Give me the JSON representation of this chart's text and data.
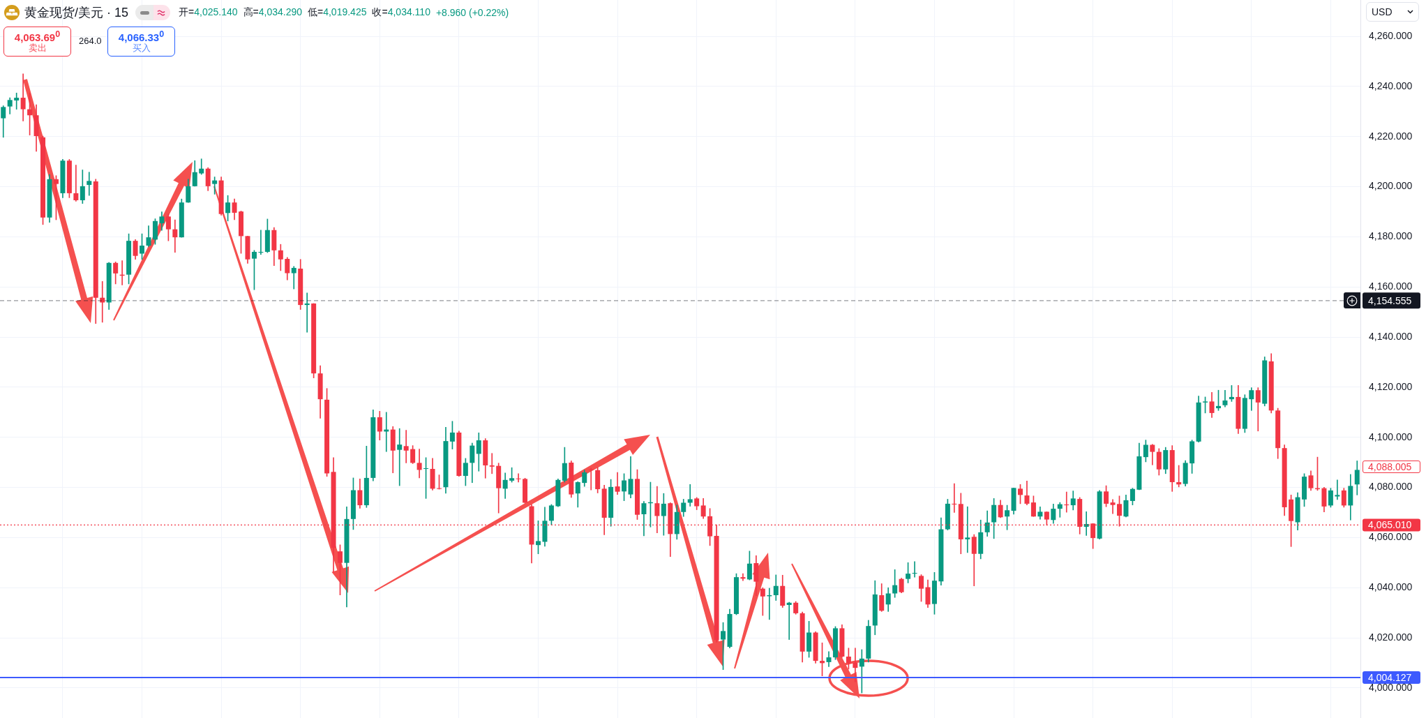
{
  "chart_data": {
    "type": "candlestick",
    "title": "黄金现货/美元 · 15",
    "ylabel": "USD",
    "categories": [
      null,
      null,
      null,
      null,
      null,
      null,
      null,
      null,
      null,
      null,
      null,
      null,
      null,
      null,
      null,
      null,
      null,
      null,
      null,
      null,
      null,
      null,
      null,
      null,
      null,
      null,
      null,
      null,
      null,
      null,
      null,
      null,
      null,
      null,
      null,
      null,
      null,
      null,
      null,
      null,
      null,
      null,
      null,
      null,
      null,
      null,
      null,
      null,
      null,
      null,
      null,
      null,
      null,
      null,
      null,
      null,
      null,
      null,
      null,
      null,
      null,
      null,
      null,
      null,
      null,
      null,
      null,
      null,
      null,
      null,
      null,
      null,
      null,
      null,
      null,
      null,
      null,
      null,
      null,
      null,
      null,
      null,
      null,
      null,
      null,
      null,
      null,
      null,
      null,
      null,
      null,
      null,
      null,
      null,
      null,
      null,
      null,
      null,
      null,
      null,
      null,
      null,
      null,
      null,
      null,
      null,
      null,
      null,
      null,
      null,
      null,
      null,
      null,
      null,
      null,
      null,
      null,
      null,
      null,
      null,
      null,
      null,
      null,
      null,
      null,
      null,
      null,
      null,
      null,
      null,
      null,
      null,
      null,
      null,
      null,
      null,
      null,
      null,
      null,
      null,
      null,
      null,
      null,
      null,
      null,
      null,
      null,
      null,
      null,
      null,
      null,
      null,
      null,
      null,
      null,
      null,
      null,
      null,
      null,
      null,
      null,
      null,
      null,
      null,
      null,
      null,
      null,
      null,
      null,
      null,
      null,
      null,
      null,
      null,
      null,
      null,
      null,
      null,
      null,
      null,
      null,
      null,
      null,
      null,
      null,
      null,
      null,
      null,
      null,
      null,
      null,
      null,
      null,
      null,
      null,
      null,
      null,
      null,
      null,
      null,
      null,
      null,
      null,
      null,
      null,
      null
    ],
    "ohlc": [
      [
        4227.3,
        4232.3,
        4219.7,
        4231.8
      ],
      [
        4232.0,
        4235.5,
        4229.0,
        4234.6
      ],
      [
        4234.4,
        4237.4,
        4230.9,
        4235.5
      ],
      [
        4235.5,
        4245.0,
        4226.2,
        4230.9
      ],
      [
        4230.9,
        4237.4,
        4220.6,
        4228.5
      ],
      [
        4228.5,
        4232.7,
        4214.1,
        4220.2
      ],
      [
        4219.7,
        4220.2,
        4184.9,
        4187.7
      ],
      [
        4187.7,
        4204.9,
        4185.8,
        4203.0
      ],
      [
        4203.0,
        4204.4,
        4186.8,
        4201.1
      ],
      [
        4197.4,
        4210.9,
        4195.6,
        4210.4
      ],
      [
        4210.4,
        4210.9,
        4195.6,
        4197.4
      ],
      [
        4197.4,
        4208.6,
        4194.2,
        4194.6
      ],
      [
        4194.6,
        4206.7,
        4193.3,
        4200.2
      ],
      [
        4200.7,
        4205.8,
        4196.5,
        4202.3
      ],
      [
        4202.1,
        4203.0,
        4145.4,
        4155.7
      ],
      [
        4155.7,
        4162.2,
        4145.9,
        4153.8
      ],
      [
        4153.8,
        4169.8,
        4151.0,
        4169.6
      ],
      [
        4169.6,
        4170.0,
        4161.2,
        4165.4
      ],
      [
        4164.9,
        4170.5,
        4160.8,
        4164.5
      ],
      [
        4164.9,
        4181.2,
        4161.2,
        4178.4
      ],
      [
        4178.4,
        4178.9,
        4171.0,
        4172.4
      ],
      [
        4173.3,
        4181.2,
        4171.0,
        4176.5
      ],
      [
        4176.5,
        4184.4,
        4176.1,
        4179.8
      ],
      [
        4178.9,
        4187.2,
        4177.0,
        4186.3
      ],
      [
        4185.4,
        4190.0,
        4182.6,
        4188.1
      ],
      [
        4188.1,
        4189.1,
        4178.4,
        4183.0
      ],
      [
        4183.0,
        4186.8,
        4173.8,
        4179.8
      ],
      [
        4179.8,
        4195.1,
        4179.8,
        4193.7
      ],
      [
        4193.7,
        4203.0,
        4193.7,
        4200.2
      ],
      [
        4200.2,
        4210.4,
        4200.2,
        4205.8
      ],
      [
        4205.3,
        4211.1,
        4204.9,
        4207.2
      ],
      [
        4207.2,
        4207.6,
        4198.4,
        4200.2
      ],
      [
        4201.1,
        4203.9,
        4197.0,
        4202.5
      ],
      [
        4202.5,
        4203.9,
        4188.6,
        4189.1
      ],
      [
        4189.5,
        4196.5,
        4186.3,
        4193.7
      ],
      [
        4193.7,
        4195.1,
        4186.8,
        4189.6
      ],
      [
        4190.1,
        4190.3,
        4173.4,
        4180.3
      ],
      [
        4180.3,
        4180.3,
        4169.4,
        4171.0
      ],
      [
        4171.3,
        4174.6,
        4158.9,
        4174.0
      ],
      [
        4173.7,
        4182.7,
        4173.0,
        4174.0
      ],
      [
        4174.0,
        4187.1,
        4173.7,
        4182.7
      ],
      [
        4182.7,
        4183.7,
        4168.5,
        4174.6
      ],
      [
        4174.6,
        4177.0,
        4166.5,
        4171.0
      ],
      [
        4171.2,
        4171.8,
        4162.8,
        4165.5
      ],
      [
        4165.5,
        4168.2,
        4159.2,
        4167.6
      ],
      [
        4167.3,
        4171.0,
        4151.0,
        4152.8
      ],
      [
        4152.8,
        4157.6,
        4141.9,
        4153.4
      ],
      [
        4153.4,
        4153.4,
        4123.7,
        4125.5
      ],
      [
        4125.5,
        4128.6,
        4107.6,
        4115.2
      ],
      [
        4115.0,
        4119.5,
        4084.4,
        4085.6
      ],
      [
        4086.2,
        4091.9,
        4046.2,
        4055.9
      ],
      [
        4054.5,
        4057.1,
        4037.1,
        4049.9
      ],
      [
        4049.9,
        4072.3,
        4032.3,
        4067.4
      ],
      [
        4067.4,
        4083.8,
        4063.2,
        4078.9
      ],
      [
        4078.9,
        4083.4,
        4071.7,
        4072.9
      ],
      [
        4072.9,
        4096.5,
        4072.0,
        4083.8
      ],
      [
        4083.8,
        4111.0,
        4082.6,
        4108.0
      ],
      [
        4108.0,
        4110.4,
        4098.9,
        4102.3
      ],
      [
        4102.3,
        4110.0,
        4094.3,
        4103.1
      ],
      [
        4103.1,
        4104.3,
        4085.8,
        4094.7
      ],
      [
        4095.0,
        4103.5,
        4080.7,
        4097.1
      ],
      [
        4096.5,
        4102.8,
        4089.8,
        4094.7
      ],
      [
        4095.3,
        4096.7,
        4089.5,
        4089.8
      ],
      [
        4089.8,
        4095.3,
        4083.8,
        4087.0
      ],
      [
        4087.4,
        4091.9,
        4075.6,
        4087.6
      ],
      [
        4087.4,
        4091.6,
        4078.9,
        4079.5
      ],
      [
        4079.5,
        4085.0,
        4079.3,
        4079.4
      ],
      [
        4080.1,
        4104.0,
        4077.7,
        4098.5
      ],
      [
        4098.3,
        4106.4,
        4095.3,
        4101.9
      ],
      [
        4101.9,
        4102.5,
        4084.4,
        4084.6
      ],
      [
        4084.6,
        4091.6,
        4080.7,
        4089.8
      ],
      [
        4089.8,
        4097.7,
        4081.9,
        4096.7
      ],
      [
        4093.4,
        4101.8,
        4086.5,
        4098.8
      ],
      [
        4098.8,
        4099.5,
        4083.7,
        4088.8
      ],
      [
        4088.8,
        4093.6,
        4085.5,
        4088.3
      ],
      [
        4088.6,
        4089.7,
        4069.8,
        4079.7
      ],
      [
        4079.5,
        4085.8,
        4075.6,
        4083.0
      ],
      [
        4082.7,
        4087.9,
        4082.1,
        4083.7
      ],
      [
        4083.5,
        4085.5,
        4082.1,
        4083.3
      ],
      [
        4083.4,
        4083.7,
        4073.7,
        4073.9
      ],
      [
        4072.5,
        4073.2,
        4049.8,
        4057.2
      ],
      [
        4057.0,
        4066.7,
        4053.5,
        4058.6
      ],
      [
        4058.3,
        4072.1,
        4056.5,
        4066.7
      ],
      [
        4066.7,
        4073.2,
        4065.1,
        4072.8
      ],
      [
        4072.5,
        4083.4,
        4072.3,
        4083.0
      ],
      [
        4082.7,
        4096.0,
        4082.1,
        4089.7
      ],
      [
        4089.9,
        4090.6,
        4076.0,
        4077.2
      ],
      [
        4077.6,
        4082.3,
        4072.1,
        4082.1
      ],
      [
        4081.8,
        4086.9,
        4080.4,
        4086.0
      ],
      [
        4087.1,
        4087.7,
        4079.0,
        4086.9
      ],
      [
        4086.9,
        4087.9,
        4077.8,
        4079.3
      ],
      [
        4079.5,
        4080.9,
        4061.1,
        4067.9
      ],
      [
        4067.9,
        4083.2,
        4064.5,
        4080.2
      ],
      [
        4080.4,
        4086.0,
        4077.2,
        4078.3
      ],
      [
        4078.4,
        4085.5,
        4074.7,
        4082.8
      ],
      [
        4077.2,
        4092.3,
        4075.8,
        4083.4
      ],
      [
        4083.4,
        4087.1,
        4067.2,
        4069.1
      ],
      [
        4069.3,
        4074.4,
        4060.7,
        4073.7
      ],
      [
        4073.7,
        4082.1,
        4064.2,
        4074.1
      ],
      [
        4073.7,
        4080.4,
        4061.9,
        4068.6
      ],
      [
        4068.6,
        4077.6,
        4060.9,
        4073.5
      ],
      [
        4073.7,
        4073.9,
        4052.4,
        4061.4
      ],
      [
        4061.4,
        4073.0,
        4059.3,
        4070.2
      ],
      [
        4070.2,
        4075.3,
        4068.4,
        4073.9
      ],
      [
        4073.9,
        4081.2,
        4072.5,
        4075.3
      ],
      [
        4075.6,
        4076.0,
        4071.1,
        4072.5
      ],
      [
        4072.8,
        4075.6,
        4067.6,
        4068.4
      ],
      [
        4068.5,
        4071.6,
        4056.8,
        4060.5
      ],
      [
        4060.7,
        4065.1,
        4018.2,
        4019.1
      ],
      [
        4019.3,
        4026.1,
        4007.3,
        4022.7
      ],
      [
        4016.4,
        4031.4,
        4015.9,
        4029.5
      ],
      [
        4029.5,
        4045.6,
        4029.2,
        4044.2
      ],
      [
        4044.2,
        4045.6,
        4042.8,
        4043.6
      ],
      [
        4043.3,
        4054.6,
        4043.1,
        4049.6
      ],
      [
        4049.8,
        4052.8,
        4036.8,
        4042.4
      ],
      [
        4039.6,
        4040.0,
        4028.9,
        4036.5
      ],
      [
        4036.6,
        4039.8,
        4027.3,
        4037.0
      ],
      [
        4037.0,
        4045.1,
        4034.9,
        4040.7
      ],
      [
        4040.7,
        4045.0,
        4032.1,
        4032.8
      ],
      [
        4033.1,
        4034.2,
        4019.3,
        4034.0
      ],
      [
        4034.0,
        4034.5,
        4029.4,
        4029.8
      ],
      [
        4029.8,
        4030.3,
        4010.3,
        4014.5
      ],
      [
        4014.5,
        4026.6,
        4012.2,
        4022.1
      ],
      [
        4022.1,
        4022.4,
        4009.9,
        4010.8
      ],
      [
        4010.8,
        4018.0,
        4004.8,
        4009.9
      ],
      [
        4010.3,
        4014.5,
        4008.5,
        4012.2
      ],
      [
        4012.2,
        4024.5,
        4011.3,
        4023.8
      ],
      [
        4023.8,
        4025.2,
        4012.2,
        4012.5
      ],
      [
        4012.5,
        4015.9,
        4007.5,
        4009.9
      ],
      [
        4010.1,
        4015.9,
        4002.4,
        4008.0
      ],
      [
        4008.5,
        4015.3,
        3998.0,
        4011.7
      ],
      [
        4011.7,
        4027.0,
        4010.3,
        4024.7
      ],
      [
        4024.9,
        4042.8,
        4021.2,
        4037.3
      ],
      [
        4037.0,
        4041.6,
        4030.5,
        4030.8
      ],
      [
        4033.3,
        4040.0,
        4030.5,
        4037.7
      ],
      [
        4037.7,
        4047.2,
        4036.1,
        4041.0
      ],
      [
        4043.5,
        4043.8,
        4037.9,
        4038.2
      ],
      [
        4043.5,
        4050.0,
        4041.9,
        4045.6
      ],
      [
        4045.6,
        4050.4,
        4044.2,
        4045.9
      ],
      [
        4044.7,
        4045.2,
        4034.5,
        4039.6
      ],
      [
        4040.2,
        4043.1,
        4032.1,
        4033.3
      ],
      [
        4033.5,
        4046.1,
        4029.4,
        4042.8
      ],
      [
        4042.5,
        4067.9,
        4041.0,
        4063.3
      ],
      [
        4063.3,
        4075.3,
        4063.0,
        4073.5
      ],
      [
        4073.5,
        4081.5,
        4070.0,
        4073.2
      ],
      [
        4073.4,
        4077.7,
        4053.5,
        4059.3
      ],
      [
        4059.3,
        4072.3,
        4054.0,
        4060.0
      ],
      [
        4060.3,
        4061.2,
        4040.7,
        4053.5
      ],
      [
        4053.5,
        4067.0,
        4051.5,
        4062.1
      ],
      [
        4062.1,
        4070.7,
        4060.5,
        4066.0
      ],
      [
        4066.1,
        4075.6,
        4059.6,
        4073.0
      ],
      [
        4073.0,
        4074.9,
        4067.9,
        4068.1
      ],
      [
        4068.4,
        4072.9,
        4063.1,
        4070.9
      ],
      [
        4070.7,
        4079.8,
        4069.3,
        4079.8
      ],
      [
        4079.5,
        4081.2,
        4073.5,
        4077.0
      ],
      [
        4076.8,
        4082.6,
        4073.0,
        4073.5
      ],
      [
        4074.0,
        4076.6,
        4068.4,
        4068.4
      ],
      [
        4068.4,
        4072.3,
        4067.3,
        4070.3
      ],
      [
        4070.3,
        4070.3,
        4064.9,
        4067.2
      ],
      [
        4067.0,
        4073.4,
        4065.6,
        4071.5
      ],
      [
        4071.5,
        4074.0,
        4068.1,
        4073.3
      ],
      [
        4073.2,
        4078.2,
        4070.1,
        4072.9
      ],
      [
        4072.9,
        4078.6,
        4071.0,
        4075.6
      ],
      [
        4075.4,
        4076.0,
        4061.4,
        4064.3
      ],
      [
        4064.3,
        4070.3,
        4060.8,
        4065.4
      ],
      [
        4065.6,
        4065.6,
        4055.6,
        4059.8
      ],
      [
        4059.6,
        4078.8,
        4059.4,
        4078.4
      ],
      [
        4078.4,
        4080.7,
        4072.3,
        4073.5
      ],
      [
        4074.0,
        4075.2,
        4069.5,
        4073.0
      ],
      [
        4073.4,
        4076.6,
        4064.5,
        4068.7
      ],
      [
        4068.4,
        4077.0,
        4068.2,
        4074.9
      ],
      [
        4074.6,
        4079.7,
        4073.0,
        4079.4
      ],
      [
        4079.1,
        4097.7,
        4079.1,
        4092.4
      ],
      [
        4092.1,
        4098.9,
        4090.2,
        4097.0
      ],
      [
        4097.0,
        4097.2,
        4089.0,
        4094.2
      ],
      [
        4094.2,
        4095.5,
        4084.9,
        4087.2
      ],
      [
        4087.2,
        4096.0,
        4085.5,
        4094.9
      ],
      [
        4094.9,
        4096.7,
        4078.4,
        4082.1
      ],
      [
        4082.1,
        4088.8,
        4080.2,
        4081.2
      ],
      [
        4081.4,
        4090.7,
        4080.5,
        4089.8
      ],
      [
        4089.6,
        4098.9,
        4085.6,
        4098.4
      ],
      [
        4098.3,
        4116.5,
        4098.1,
        4113.9
      ],
      [
        4113.9,
        4116.1,
        4109.7,
        4114.3
      ],
      [
        4114.3,
        4117.9,
        4107.9,
        4109.7
      ],
      [
        4111.6,
        4118.8,
        4110.7,
        4112.5
      ],
      [
        4112.8,
        4118.8,
        4112.1,
        4114.7
      ],
      [
        4115.2,
        4120.7,
        4114.3,
        4116.1
      ],
      [
        4116.1,
        4120.7,
        4101.5,
        4103.4
      ],
      [
        4103.4,
        4117.0,
        4101.9,
        4115.7
      ],
      [
        4115.2,
        4119.8,
        4110.7,
        4118.8
      ],
      [
        4118.8,
        4119.8,
        4102.5,
        4113.9
      ],
      [
        4113.4,
        4132.1,
        4112.5,
        4130.7
      ],
      [
        4130.3,
        4133.4,
        4109.7,
        4110.7
      ],
      [
        4110.7,
        4111.6,
        4091.5,
        4095.7
      ],
      [
        4095.7,
        4097.0,
        4068.8,
        4072.1
      ],
      [
        4075.2,
        4077.0,
        4056.4,
        4066.6
      ],
      [
        4066.1,
        4077.9,
        4063.0,
        4076.1
      ],
      [
        4075.2,
        4085.5,
        4072.4,
        4084.3
      ],
      [
        4084.8,
        4086.6,
        4078.8,
        4079.7
      ],
      [
        4079.7,
        4092.1,
        4078.8,
        4079.3
      ],
      [
        4079.7,
        4080.1,
        4070.2,
        4072.4
      ],
      [
        4072.8,
        4079.7,
        4072.1,
        4078.8
      ],
      [
        4076.4,
        4083.0,
        4075.2,
        4077.0
      ],
      [
        4078.8,
        4079.7,
        4072.1,
        4072.8
      ],
      [
        4072.8,
        4085.2,
        4067.0,
        4080.6
      ],
      [
        4081.2,
        4090.6,
        4077.0,
        4087.0
      ]
    ],
    "ylim": [
      3988,
      4274.5
    ],
    "yticks": [
      {
        "value": 4000,
        "label": "4,000.000"
      },
      {
        "value": 4020,
        "label": "4,020.000"
      },
      {
        "value": 4040,
        "label": "4,040.000"
      },
      {
        "value": 4060,
        "label": "4,060.000"
      },
      {
        "value": 4080,
        "label": "4,080.000"
      },
      {
        "value": 4100,
        "label": "4,100.000"
      },
      {
        "value": 4120,
        "label": "4,120.000"
      },
      {
        "value": 4140,
        "label": "4,140.000"
      },
      {
        "value": 4160,
        "label": "4,160.000"
      },
      {
        "value": 4180,
        "label": "4,180.000"
      },
      {
        "value": 4200,
        "label": "4,200.000"
      },
      {
        "value": 4220,
        "label": "4,220.000"
      },
      {
        "value": 4240,
        "label": "4,240.000"
      },
      {
        "value": 4260,
        "label": "4,260.000"
      }
    ],
    "grid": true,
    "tick_labels": "y",
    "ref_lines": [
      {
        "axis": "y",
        "value": 4154.555,
        "label": "4,154.555",
        "color": "#131722",
        "line_style": "dashed"
      },
      {
        "axis": "y",
        "value": 4065.01,
        "label": "4,065.010",
        "color": "#f23645",
        "line_style": "dotted"
      },
      {
        "axis": "y",
        "value": 4004.127,
        "label": "4,004.127",
        "color": "#3d5afe",
        "line_style": "solid"
      }
    ],
    "annotations": [
      "开=4,025.140",
      "高=4,034.290",
      "低=4,019.425",
      "收=4,034.110",
      "+8.960 (+0.22%)",
      "4,063.69$^{0}$",
      "卖出",
      "264.0",
      "4,066.33$^{0}$",
      "买入",
      "4,088.005"
    ]
  }
}
